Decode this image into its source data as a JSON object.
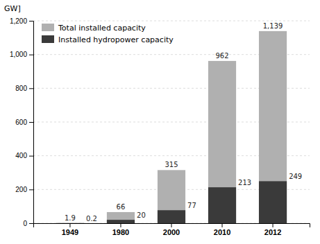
{
  "chart_data": {
    "type": "bar",
    "y_label": "GW]",
    "categories": [
      "1949",
      "1980",
      "2000",
      "2010",
      "2012"
    ],
    "series": [
      {
        "name": "Total installed capacity",
        "color": "#b0b0b0",
        "values": [
          1.9,
          66,
          315,
          962,
          1139
        ],
        "value_labels": [
          "1.9",
          "66",
          "315",
          "962",
          "1,139"
        ]
      },
      {
        "name": "Installed hydropower capacity",
        "color": "#3a3a3a",
        "values": [
          0.2,
          20,
          77,
          213,
          249
        ]
      }
    ],
    "ylim": [
      0,
      1200
    ],
    "yticks": [
      0,
      200,
      400,
      600,
      800,
      {
        "value": 1000,
        "label": "1,000"
      },
      {
        "value": 1200,
        "label": "1,200"
      }
    ],
    "grid": true,
    "legend": "upper left",
    "data_labels": true
  }
}
